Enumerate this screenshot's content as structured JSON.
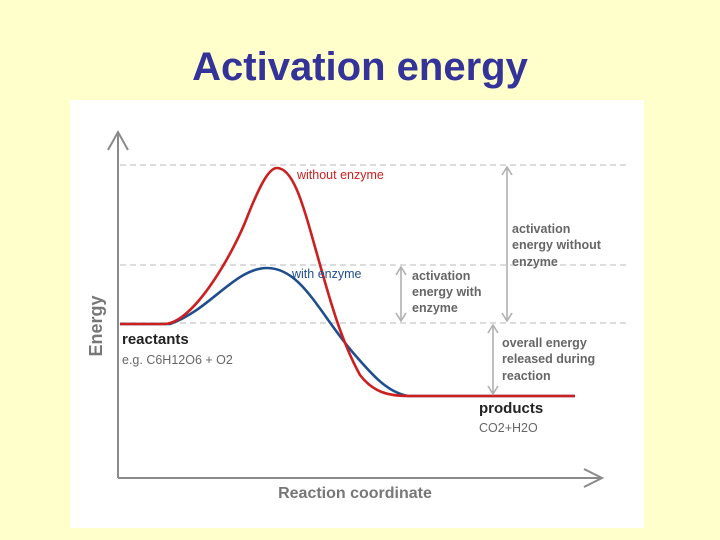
{
  "slide": {
    "title": "Activation energy"
  },
  "diagram": {
    "axis_y_label": "Energy",
    "axis_x_label": "Reaction coordinate",
    "curve_without_label": "without enzyme",
    "curve_with_label": "with enzyme",
    "reactants_label": "reactants",
    "reactants_formula": "e.g. C6H12O6 + O2",
    "products_label": "products",
    "products_formula": "CO2+H2O",
    "activation_with_lines": [
      "activation",
      "energy with",
      "enzyme"
    ],
    "activation_without_lines": [
      "activation",
      "energy without",
      "enzyme"
    ],
    "overall_lines": [
      "overall energy",
      "released during",
      "reaction"
    ],
    "colors": {
      "without_enzyme": "#cc1f1f",
      "with_enzyme": "#1f4e8c",
      "guide": "#b0b0b0",
      "label_text": "#555555",
      "title": "#333399"
    }
  }
}
